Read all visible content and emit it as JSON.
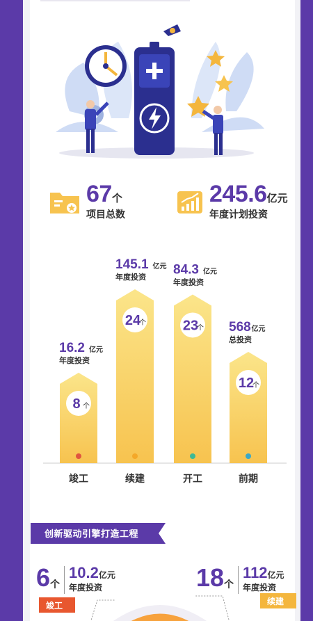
{
  "summary": {
    "projects": {
      "value": "67",
      "unit": "个",
      "label": "项目总数"
    },
    "investment": {
      "value": "245.6",
      "unit": "亿元",
      "label": "年度计划投资"
    }
  },
  "chart_data": {
    "type": "bar",
    "categories": [
      "竣工",
      "续建",
      "开工",
      "前期"
    ],
    "series": [
      {
        "values": [
          8,
          24,
          23,
          12
        ]
      }
    ],
    "count_unit": "个",
    "invest_values": [
      "16.2",
      "145.1",
      "84.3",
      "568"
    ],
    "invest_unit": "亿元",
    "invest_labels": [
      "年度投资",
      "年度投资",
      "年度投资",
      "总投资"
    ],
    "dot_colors": [
      "#e0553f",
      "#f4a829",
      "#3fb996",
      "#3aa8c8"
    ],
    "bar_gradient": [
      "#fbe58a",
      "#f7c34f"
    ],
    "ylim": [
      0,
      24
    ]
  },
  "section": {
    "title": "创新驱动引擎打造工程",
    "left": {
      "count": "6",
      "count_unit": "个",
      "value": "10.2",
      "value_unit": "亿元",
      "sub": "年度投资",
      "tag": "竣工"
    },
    "right": {
      "count": "18",
      "count_unit": "个",
      "value": "112",
      "value_unit": "亿元",
      "sub": "年度投资",
      "tag": "续建"
    }
  },
  "colors": {
    "purple": "#5b3aa8",
    "yellow": "#f7c34f",
    "red": "#e8572f"
  }
}
